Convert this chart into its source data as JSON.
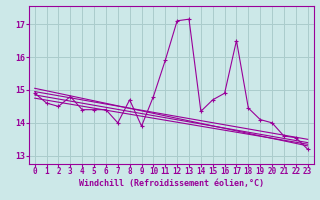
{
  "xlabel": "Windchill (Refroidissement éolien,°C)",
  "x_values": [
    0,
    1,
    2,
    3,
    4,
    5,
    6,
    7,
    8,
    9,
    10,
    11,
    12,
    13,
    14,
    15,
    16,
    17,
    18,
    19,
    20,
    21,
    22,
    23
  ],
  "y_values": [
    14.9,
    14.6,
    14.5,
    14.8,
    14.4,
    14.4,
    14.4,
    14.0,
    14.7,
    13.9,
    14.8,
    15.9,
    17.1,
    17.15,
    14.35,
    14.7,
    14.9,
    16.5,
    14.45,
    14.1,
    14.0,
    13.6,
    13.55,
    13.2
  ],
  "regression_lines": [
    {
      "start_x": 0,
      "start_y": 15.05,
      "end_x": 23,
      "end_y": 13.3
    },
    {
      "start_x": 0,
      "start_y": 14.95,
      "end_x": 23,
      "end_y": 13.5
    },
    {
      "start_x": 0,
      "start_y": 14.85,
      "end_x": 23,
      "end_y": 13.4
    },
    {
      "start_x": 0,
      "start_y": 14.75,
      "end_x": 23,
      "end_y": 13.35
    }
  ],
  "line_color": "#990099",
  "bg_color": "#cce8e8",
  "grid_color": "#aacccc",
  "ylim": [
    12.75,
    17.55
  ],
  "xlim": [
    -0.5,
    23.5
  ],
  "yticks": [
    13,
    14,
    15,
    16,
    17
  ],
  "xticks": [
    0,
    1,
    2,
    3,
    4,
    5,
    6,
    7,
    8,
    9,
    10,
    11,
    12,
    13,
    14,
    15,
    16,
    17,
    18,
    19,
    20,
    21,
    22,
    23
  ]
}
